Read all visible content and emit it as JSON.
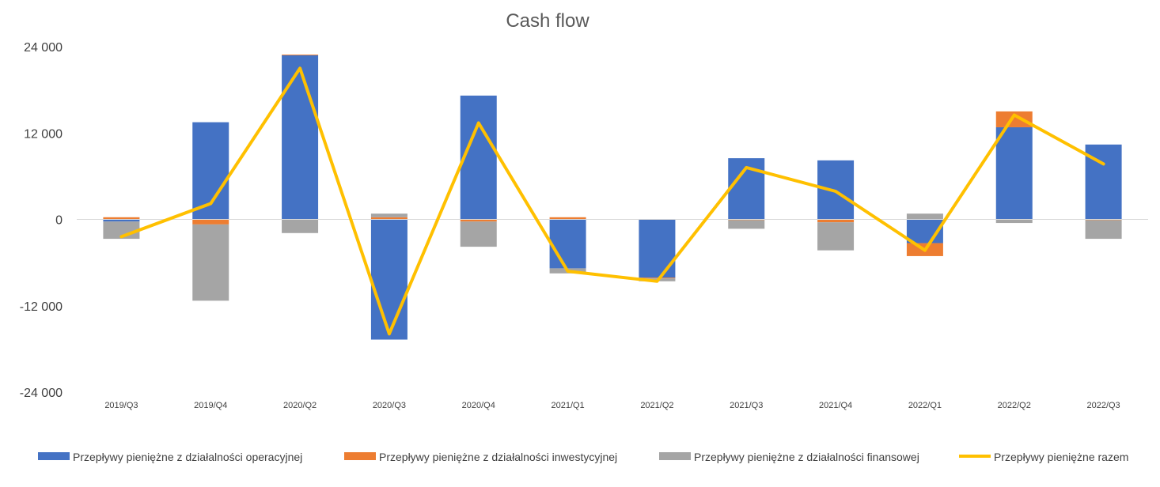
{
  "chart_data": {
    "type": "bar",
    "stacked": true,
    "title": "Cash flow",
    "xlabel": "",
    "ylabel": "",
    "ylim": [
      -24000,
      24000
    ],
    "yticks": [
      24000,
      12000,
      0,
      -12000,
      -24000
    ],
    "ytick_labels": [
      "24 000",
      "12 000",
      "0",
      "-12 000",
      "-24 000"
    ],
    "grid": false,
    "legend": "bottom",
    "categories": [
      "2019/Q3",
      "2019/Q4",
      "2020/Q2",
      "2020/Q3",
      "2020/Q4",
      "2021/Q1",
      "2021/Q2",
      "2021/Q3",
      "2021/Q4",
      "2022/Q1",
      "2022/Q2",
      "2022/Q3"
    ],
    "series": [
      {
        "name": "Przepływy pieniężne z działalności operacyjnej",
        "kind": "bar",
        "color": "#4472C4",
        "values": [
          -300,
          13500,
          22800,
          -16700,
          17200,
          -6800,
          -8100,
          8500,
          8200,
          -3300,
          12800,
          10400
        ]
      },
      {
        "name": "Przepływy pieniężne z działalności inwestycyjnej",
        "kind": "bar",
        "color": "#ED7D31",
        "values": [
          300,
          -700,
          100,
          300,
          -300,
          300,
          -100,
          -100,
          -400,
          -1800,
          2200,
          -100
        ]
      },
      {
        "name": "Przepływy pieniężne z działalności finansowej",
        "kind": "bar",
        "color": "#A5A5A5",
        "values": [
          -2400,
          -10600,
          -1900,
          500,
          -3500,
          -700,
          -400,
          -1200,
          -3900,
          800,
          -500,
          -2600
        ]
      },
      {
        "name": "Przepływy pieniężne razem",
        "kind": "line",
        "color": "#FFC000",
        "values": [
          -2400,
          2200,
          21000,
          -15900,
          13400,
          -7200,
          -8600,
          7200,
          3900,
          -4300,
          14500,
          7700
        ]
      }
    ]
  }
}
